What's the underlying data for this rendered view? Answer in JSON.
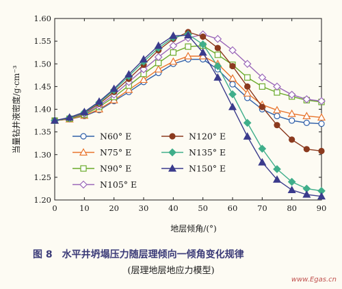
{
  "chart_data": {
    "type": "line",
    "xlabel": "地层倾角/(°)",
    "ylabel": "当量钻井液密度/g·cm⁻³",
    "xlim": [
      0,
      90
    ],
    "ylim": [
      1.2,
      1.6
    ],
    "xticks": [
      "0",
      "10",
      "20",
      "30",
      "40",
      "50",
      "60",
      "70",
      "80",
      "90"
    ],
    "yticks": [
      "1.20",
      "1.25",
      "1.30",
      "1.35",
      "1.40",
      "1.45",
      "1.50",
      "1.55",
      "1.60"
    ],
    "grid": false,
    "legend_position": "lower-left",
    "x": [
      0,
      5,
      10,
      15,
      20,
      25,
      30,
      35,
      40,
      45,
      50,
      55,
      60,
      65,
      70,
      75,
      80,
      85,
      90
    ],
    "series": [
      {
        "name": "N60° E",
        "color": "#2f5fa8",
        "marker": "circle",
        "values": [
          1.375,
          1.378,
          1.385,
          1.398,
          1.418,
          1.438,
          1.46,
          1.48,
          1.5,
          1.51,
          1.51,
          1.488,
          1.455,
          1.425,
          1.4,
          1.385,
          1.375,
          1.37,
          1.368
        ]
      },
      {
        "name": "N75° E",
        "color": "#e8732a",
        "marker": "triangle-up",
        "values": [
          1.375,
          1.378,
          1.386,
          1.4,
          1.42,
          1.443,
          1.465,
          1.488,
          1.505,
          1.517,
          1.517,
          1.5,
          1.468,
          1.435,
          1.41,
          1.398,
          1.39,
          1.385,
          1.382
        ]
      },
      {
        "name": "N90° E",
        "color": "#6aaa2a",
        "marker": "square",
        "values": [
          1.375,
          1.379,
          1.388,
          1.405,
          1.427,
          1.452,
          1.478,
          1.502,
          1.525,
          1.538,
          1.54,
          1.52,
          1.498,
          1.47,
          1.45,
          1.437,
          1.428,
          1.42,
          1.416
        ]
      },
      {
        "name": "N105° E",
        "color": "#9a66b8",
        "marker": "diamond",
        "values": [
          1.375,
          1.38,
          1.39,
          1.408,
          1.432,
          1.46,
          1.488,
          1.515,
          1.54,
          1.557,
          1.565,
          1.555,
          1.53,
          1.5,
          1.47,
          1.45,
          1.432,
          1.422,
          1.418
        ]
      },
      {
        "name": "N120° E",
        "color": "#8b3a1e",
        "marker": "circle-filled",
        "values": [
          1.375,
          1.38,
          1.392,
          1.412,
          1.438,
          1.467,
          1.498,
          1.53,
          1.555,
          1.57,
          1.56,
          1.535,
          1.495,
          1.45,
          1.405,
          1.365,
          1.333,
          1.312,
          1.308
        ]
      },
      {
        "name": "N135° E",
        "color": "#3fae8a",
        "marker": "diamond-filled",
        "values": [
          1.375,
          1.381,
          1.393,
          1.415,
          1.442,
          1.473,
          1.505,
          1.535,
          1.558,
          1.565,
          1.543,
          1.495,
          1.433,
          1.37,
          1.313,
          1.268,
          1.24,
          1.225,
          1.22
        ]
      },
      {
        "name": "N150° E",
        "color": "#3b3b8c",
        "marker": "triangle-filled",
        "values": [
          1.375,
          1.382,
          1.394,
          1.417,
          1.445,
          1.477,
          1.51,
          1.54,
          1.562,
          1.563,
          1.525,
          1.47,
          1.405,
          1.34,
          1.283,
          1.245,
          1.222,
          1.212,
          1.208
        ]
      }
    ]
  },
  "caption": {
    "main": "图 8　水平井坍塌压力随层理倾向一倾角变化规律",
    "sub": "(层理地层地应力模型)"
  },
  "watermark": "www.Egas.cn"
}
